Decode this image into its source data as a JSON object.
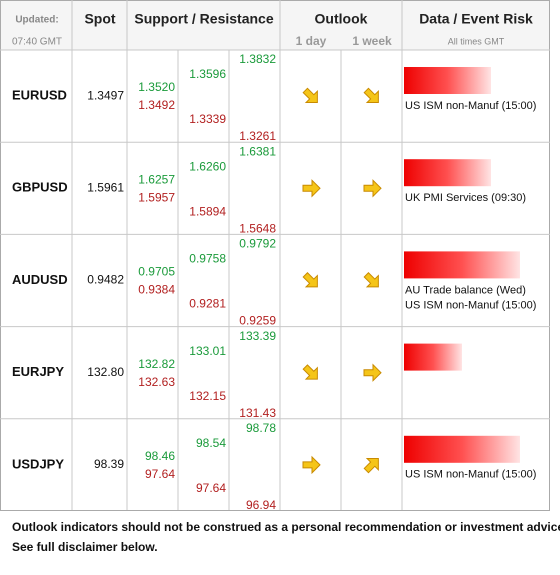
{
  "header": {
    "updated_label": "Updated:",
    "updated_time": "07:40 GMT",
    "spot": "Spot",
    "support_resistance": "Support / Resistance",
    "outlook": "Outlook",
    "outlook_1day": "1 day",
    "outlook_1week": "1 week",
    "event_risk": "Data / Event Risk",
    "event_note": "All times GMT"
  },
  "rows": [
    {
      "pair": "EURUSD",
      "spot": "1.3497",
      "levels": [
        [
          "1.3520",
          "1.3492"
        ],
        [
          "1.3596",
          "1.3339"
        ],
        [
          "1.3832",
          "1.3261"
        ]
      ],
      "outlook": [
        "down",
        "down"
      ],
      "risk": 3,
      "events": [
        "US ISM non-Manuf (15:00)"
      ]
    },
    {
      "pair": "GBPUSD",
      "spot": "1.5961",
      "levels": [
        [
          "1.6257",
          "1.5957"
        ],
        [
          "1.6260",
          "1.5894"
        ],
        [
          "1.6381",
          "1.5648"
        ]
      ],
      "outlook": [
        "right",
        "right"
      ],
      "risk": 3,
      "events": [
        "UK PMI Services (09:30)"
      ]
    },
    {
      "pair": "AUDUSD",
      "spot": "0.9482",
      "levels": [
        [
          "0.9705",
          "0.9384"
        ],
        [
          "0.9758",
          "0.9281"
        ],
        [
          "0.9792",
          "0.9259"
        ]
      ],
      "outlook": [
        "down",
        "down"
      ],
      "risk": 4,
      "events": [
        "AU Trade balance (Wed)",
        "US ISM non-Manuf (15:00)"
      ]
    },
    {
      "pair": "EURJPY",
      "spot": "132.80",
      "levels": [
        [
          "132.82",
          "132.63"
        ],
        [
          "133.01",
          "132.15"
        ],
        [
          "133.39",
          "131.43"
        ]
      ],
      "outlook": [
        "down",
        "right"
      ],
      "risk": 2,
      "events": []
    },
    {
      "pair": "USDJPY",
      "spot": "98.39",
      "levels": [
        [
          "98.46",
          "97.64"
        ],
        [
          "98.54",
          "97.64"
        ],
        [
          "98.78",
          "96.94"
        ]
      ],
      "outlook": [
        "right",
        "up"
      ],
      "risk": 4,
      "events": [
        "US ISM non-Manuf (15:00)"
      ]
    }
  ],
  "footer": {
    "line1": "Outlook indicators should not be construed as a personal recommendation or investment advice.",
    "line2": "See full disclaimer below."
  }
}
